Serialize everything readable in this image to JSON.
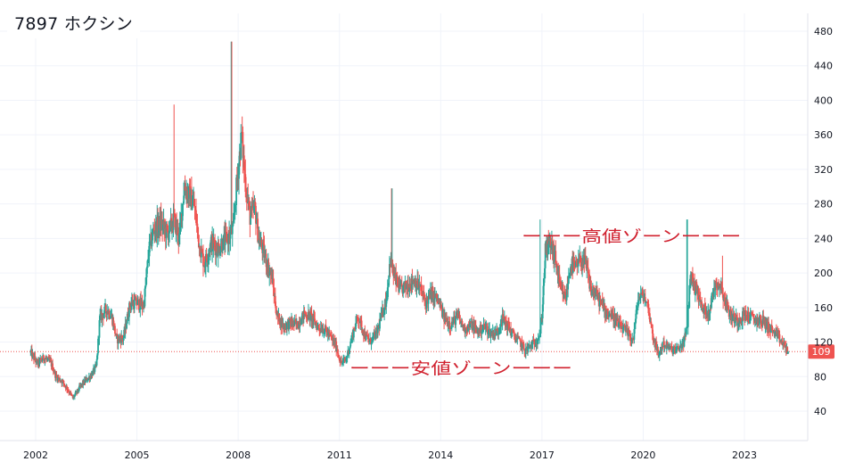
{
  "title": "7897 ホクシン",
  "chart_data": {
    "type": "candlestick",
    "ylim": [
      20,
      490
    ],
    "y_ticks": [
      40,
      80,
      120,
      160,
      200,
      240,
      280,
      320,
      360,
      400,
      440,
      480
    ],
    "x_range": [
      2001.7,
      2025.3
    ],
    "x_ticks": [
      "2002",
      "2005",
      "2008",
      "2011",
      "2014",
      "2017",
      "2020",
      "2023"
    ],
    "grid": true,
    "last_price": 109,
    "last_price_label": "109",
    "colors": {
      "up": "#26a69a",
      "down": "#ef5350",
      "annotation": "#d0202e",
      "price_tag": "#ef5350",
      "grid": "#f0f3fa"
    },
    "close_path": [
      [
        2001.85,
        108
      ],
      [
        2002.05,
        95
      ],
      [
        2002.25,
        102
      ],
      [
        2002.45,
        96
      ],
      [
        2002.6,
        80
      ],
      [
        2002.8,
        74
      ],
      [
        2003.0,
        62
      ],
      [
        2003.1,
        55
      ],
      [
        2003.35,
        70
      ],
      [
        2003.55,
        78
      ],
      [
        2003.65,
        82
      ],
      [
        2003.8,
        92
      ],
      [
        2003.9,
        148
      ],
      [
        2004.1,
        158
      ],
      [
        2004.25,
        150
      ],
      [
        2004.4,
        123
      ],
      [
        2004.6,
        125
      ],
      [
        2004.8,
        165
      ],
      [
        2005.0,
        165
      ],
      [
        2005.2,
        162
      ],
      [
        2005.35,
        225
      ],
      [
        2005.5,
        250
      ],
      [
        2005.7,
        258
      ],
      [
        2005.9,
        245
      ],
      [
        2006.1,
        262
      ],
      [
        2006.25,
        240
      ],
      [
        2006.4,
        300
      ],
      [
        2006.55,
        290
      ],
      [
        2006.7,
        278
      ],
      [
        2006.85,
        232
      ],
      [
        2007.0,
        210
      ],
      [
        2007.2,
        235
      ],
      [
        2007.4,
        228
      ],
      [
        2007.55,
        236
      ],
      [
        2007.7,
        240
      ],
      [
        2007.85,
        250
      ],
      [
        2007.95,
        300
      ],
      [
        2008.1,
        360
      ],
      [
        2008.2,
        310
      ],
      [
        2008.35,
        265
      ],
      [
        2008.5,
        275
      ],
      [
        2008.6,
        240
      ],
      [
        2008.75,
        225
      ],
      [
        2008.9,
        205
      ],
      [
        2009.0,
        195
      ],
      [
        2009.15,
        150
      ],
      [
        2009.35,
        138
      ],
      [
        2009.55,
        142
      ],
      [
        2009.75,
        140
      ],
      [
        2009.95,
        152
      ],
      [
        2010.15,
        150
      ],
      [
        2010.35,
        138
      ],
      [
        2010.55,
        135
      ],
      [
        2010.75,
        125
      ],
      [
        2010.9,
        115
      ],
      [
        2011.05,
        95
      ],
      [
        2011.2,
        100
      ],
      [
        2011.4,
        130
      ],
      [
        2011.55,
        150
      ],
      [
        2011.75,
        128
      ],
      [
        2011.9,
        120
      ],
      [
        2012.1,
        130
      ],
      [
        2012.25,
        150
      ],
      [
        2012.4,
        172
      ],
      [
        2012.5,
        215
      ],
      [
        2012.6,
        198
      ],
      [
        2012.8,
        180
      ],
      [
        2013.0,
        185
      ],
      [
        2013.2,
        192
      ],
      [
        2013.4,
        182
      ],
      [
        2013.55,
        165
      ],
      [
        2013.7,
        175
      ],
      [
        2013.9,
        170
      ],
      [
        2014.1,
        148
      ],
      [
        2014.3,
        140
      ],
      [
        2014.5,
        150
      ],
      [
        2014.7,
        135
      ],
      [
        2014.9,
        140
      ],
      [
        2015.1,
        132
      ],
      [
        2015.3,
        138
      ],
      [
        2015.5,
        130
      ],
      [
        2015.7,
        132
      ],
      [
        2015.8,
        148
      ],
      [
        2016.0,
        138
      ],
      [
        2016.2,
        125
      ],
      [
        2016.35,
        120
      ],
      [
        2016.5,
        110
      ],
      [
        2016.65,
        115
      ],
      [
        2016.8,
        120
      ],
      [
        2016.95,
        130
      ],
      [
        2017.0,
        150
      ],
      [
        2017.1,
        225
      ],
      [
        2017.25,
        235
      ],
      [
        2017.4,
        215
      ],
      [
        2017.55,
        180
      ],
      [
        2017.7,
        170
      ],
      [
        2017.85,
        210
      ],
      [
        2018.0,
        205
      ],
      [
        2018.15,
        215
      ],
      [
        2018.3,
        210
      ],
      [
        2018.45,
        180
      ],
      [
        2018.6,
        175
      ],
      [
        2018.75,
        165
      ],
      [
        2018.9,
        155
      ],
      [
        2019.1,
        150
      ],
      [
        2019.3,
        138
      ],
      [
        2019.5,
        132
      ],
      [
        2019.7,
        122
      ],
      [
        2019.85,
        170
      ],
      [
        2020.0,
        175
      ],
      [
        2020.15,
        160
      ],
      [
        2020.3,
        125
      ],
      [
        2020.45,
        105
      ],
      [
        2020.6,
        118
      ],
      [
        2020.8,
        112
      ],
      [
        2021.0,
        110
      ],
      [
        2021.2,
        120
      ],
      [
        2021.3,
        135
      ],
      [
        2021.4,
        200
      ],
      [
        2021.5,
        185
      ],
      [
        2021.6,
        180
      ],
      [
        2021.75,
        158
      ],
      [
        2021.95,
        155
      ],
      [
        2022.15,
        190
      ],
      [
        2022.3,
        185
      ],
      [
        2022.45,
        165
      ],
      [
        2022.6,
        150
      ],
      [
        2022.8,
        145
      ],
      [
        2023.0,
        152
      ],
      [
        2023.2,
        148
      ],
      [
        2023.4,
        145
      ],
      [
        2023.55,
        145
      ],
      [
        2023.7,
        138
      ],
      [
        2023.9,
        130
      ],
      [
        2024.1,
        120
      ],
      [
        2024.25,
        112
      ],
      [
        2024.3,
        109
      ]
    ],
    "annotations": [
      {
        "label": "ーーー高値ゾーンーーー",
        "y": 242,
        "x_start": 2016.4,
        "x_end": 2022.9
      },
      {
        "label": "ーーー安値ゾーンーーー",
        "y": 89,
        "x_start": 2011.3,
        "x_end": 2017.9
      }
    ]
  }
}
